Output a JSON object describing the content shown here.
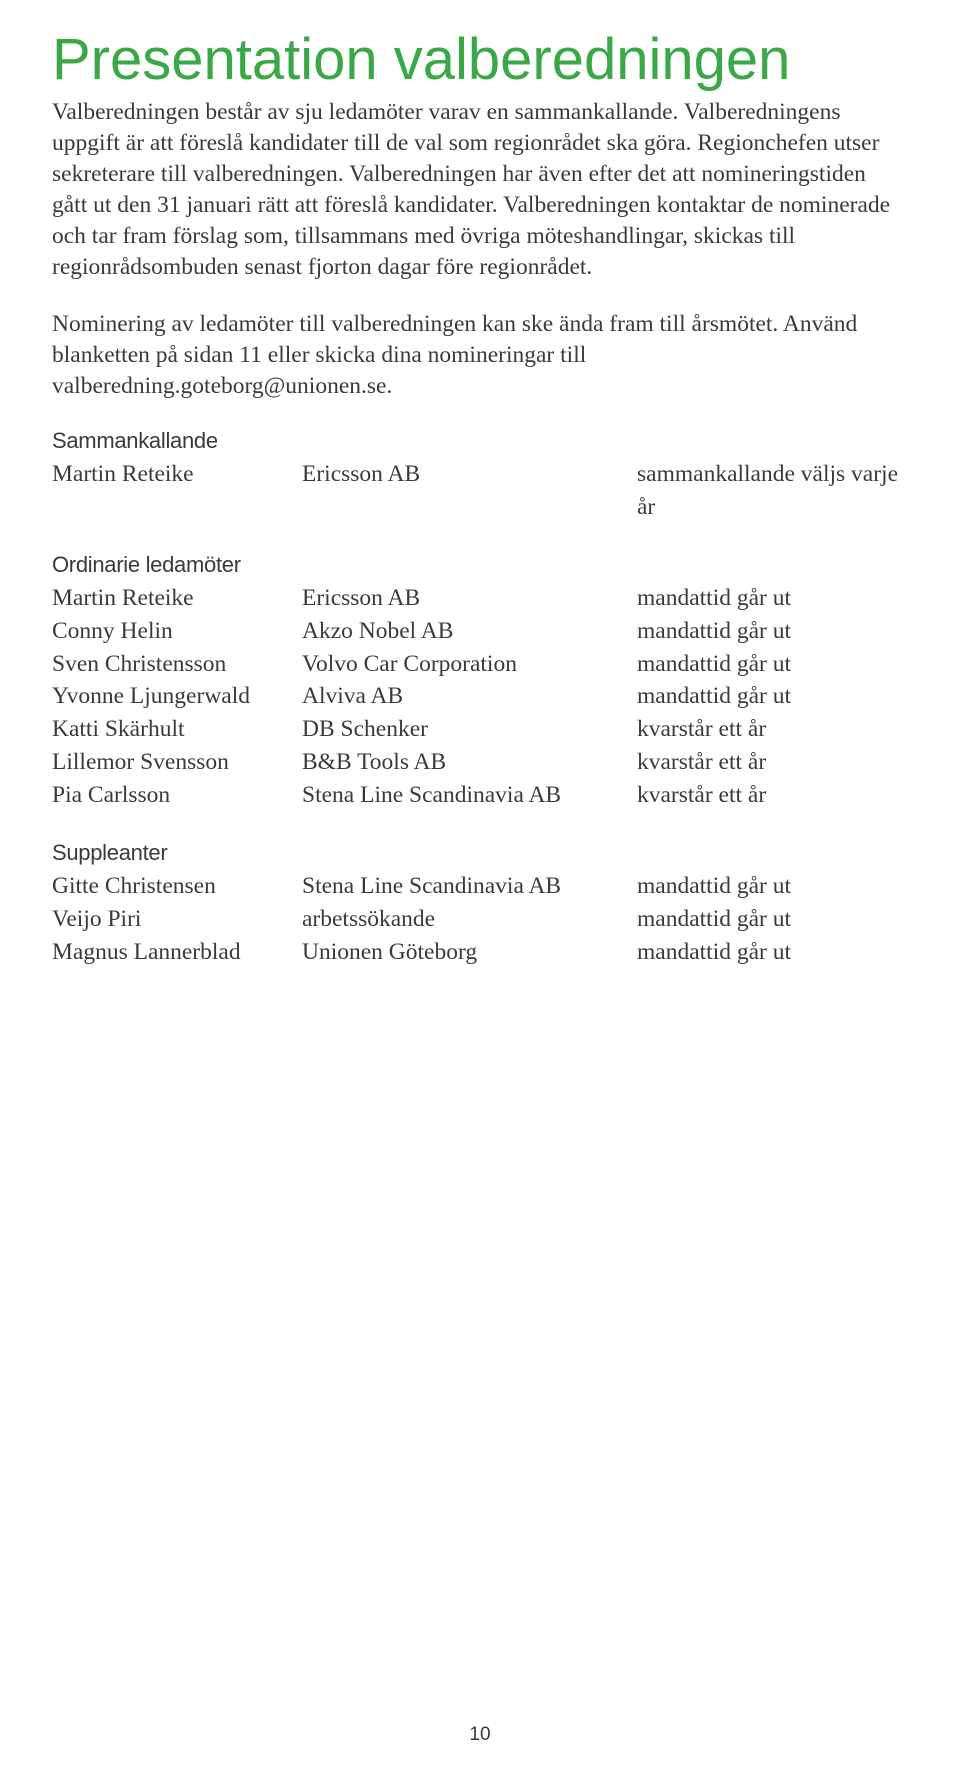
{
  "title": "Presentation valberedningen",
  "paragraphs": {
    "p1": "Valberedningen består av sju ledamöter varav en sammankallande. Valberedningens uppgift är att föreslå kandidater till de val som regionrådet ska göra. Regionchefen utser sekreterare till valberedningen.",
    "p2": "Valberedningen har även efter det att nomineringstiden gått ut den 31 januari rätt att föreslå kandidater. Valberedningen kontaktar de nominerade och tar fram förslag som, tillsammans med övriga möteshandlingar, skickas till regionrådsombuden senast fjorton dagar före regionrådet.",
    "p3": "Nominering av ledamöter till valberedningen kan ske ända fram till årsmötet. Använd blanketten på sidan 11 eller skicka dina nomineringar till valberedning.goteborg@unionen.se."
  },
  "sections": {
    "sammankallande": {
      "heading": "Sammankallande",
      "rows": [
        {
          "name": "Martin Reteike",
          "company": "Ericsson AB",
          "term": "sammankallande väljs varje år"
        }
      ]
    },
    "ordinarie": {
      "heading": "Ordinarie ledamöter",
      "rows": [
        {
          "name": "Martin Reteike",
          "company": "Ericsson AB",
          "term": "mandattid går ut"
        },
        {
          "name": "Conny Helin",
          "company": "Akzo Nobel AB",
          "term": "mandattid går ut"
        },
        {
          "name": "Sven Christensson",
          "company": "Volvo Car Corporation",
          "term": "mandattid går ut"
        },
        {
          "name": "Yvonne Ljungerwald",
          "company": "Alviva AB",
          "term": "mandattid går ut"
        },
        {
          "name": "Katti Skärhult",
          "company": "DB Schenker",
          "term": "kvarstår ett år"
        },
        {
          "name": "Lillemor Svensson",
          "company": "B&B Tools AB",
          "term": "kvarstår ett år"
        },
        {
          "name": "Pia Carlsson",
          "company": "Stena Line Scandinavia AB",
          "term": "kvarstår ett år"
        }
      ]
    },
    "suppleanter": {
      "heading": "Suppleanter",
      "rows": [
        {
          "name": "Gitte Christensen",
          "company": "Stena Line Scandinavia AB",
          "term": "mandattid går ut"
        },
        {
          "name": "Veijo Piri",
          "company": "arbetssökande",
          "term": "mandattid går ut"
        },
        {
          "name": "Magnus Lannerblad",
          "company": "Unionen Göteborg",
          "term": "mandattid går ut"
        }
      ]
    }
  },
  "pagenum": "10",
  "colors": {
    "title": "#39a845",
    "text": "#3a3a3a",
    "background": "#ffffff"
  },
  "fonts": {
    "title_family": "Helvetica Neue, sans-serif",
    "title_size_pt": 44,
    "body_family": "Georgia, serif",
    "body_size_pt": 18,
    "sectionhead_size_pt": 17
  }
}
